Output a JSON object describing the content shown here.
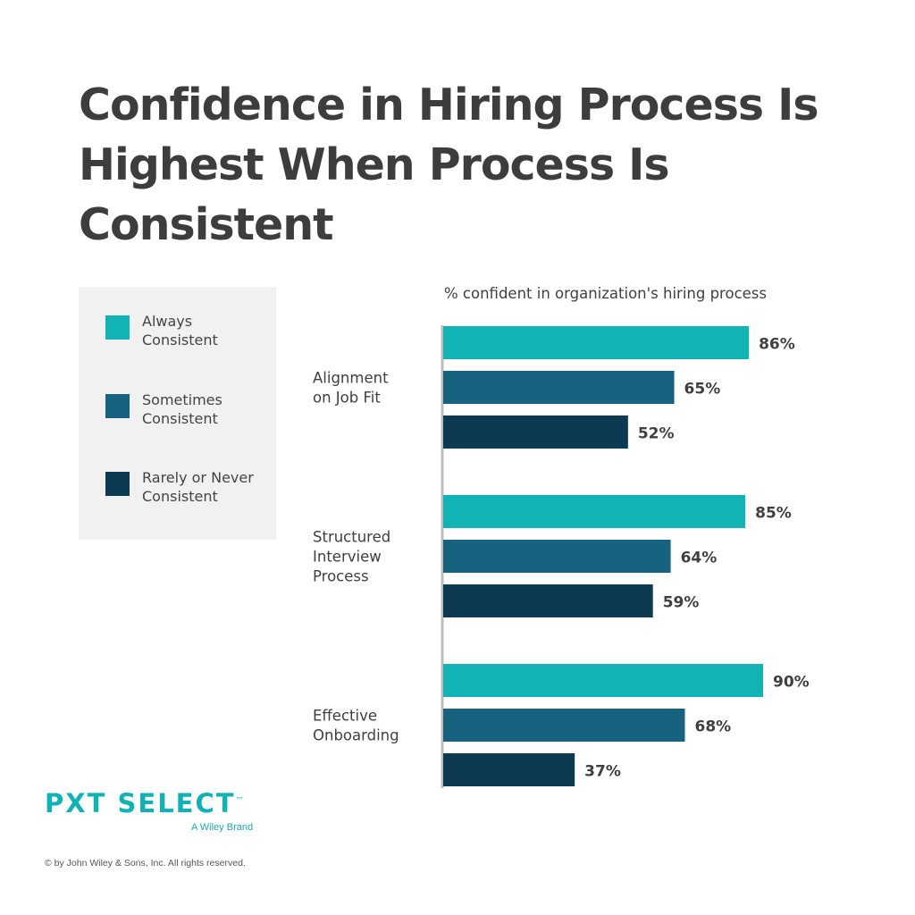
{
  "title": "Confidence in Hiring Process Is Highest When Process Is Consistent",
  "legend": [
    {
      "label": "Always\nConsistent",
      "color": "#12b3b4"
    },
    {
      "label": "Sometimes\nConsistent",
      "color": "#17627e"
    },
    {
      "label": "Rarely or Never\nConsistent",
      "color": "#0b3a52"
    }
  ],
  "chart_data": {
    "type": "bar",
    "orientation": "horizontal",
    "subtitle": "% confident in organization's hiring process",
    "categories": [
      "Alignment\non Job Fit",
      "Structured\nInterview\nProcess",
      "Effective\nOnboarding"
    ],
    "series": [
      {
        "name": "Always Consistent",
        "values": [
          86,
          85,
          90
        ],
        "color": "#12b3b4"
      },
      {
        "name": "Sometimes Consistent",
        "values": [
          65,
          64,
          68
        ],
        "color": "#17627e"
      },
      {
        "name": "Rarely or Never Consistent",
        "values": [
          52,
          59,
          37
        ],
        "color": "#0b3a52"
      }
    ],
    "value_labels": [
      [
        "86%",
        "65%",
        "52%"
      ],
      [
        "85%",
        "64%",
        "59%"
      ],
      [
        "90%",
        "68%",
        "37%"
      ]
    ],
    "xlim": [
      0,
      100
    ],
    "grid": false,
    "legend": "left"
  },
  "logo": {
    "brand": "PXT SELECT",
    "trademark": "™",
    "tagline": "A Wiley Brand"
  },
  "copyright": "© by John Wiley & Sons, Inc. All rights reserved."
}
